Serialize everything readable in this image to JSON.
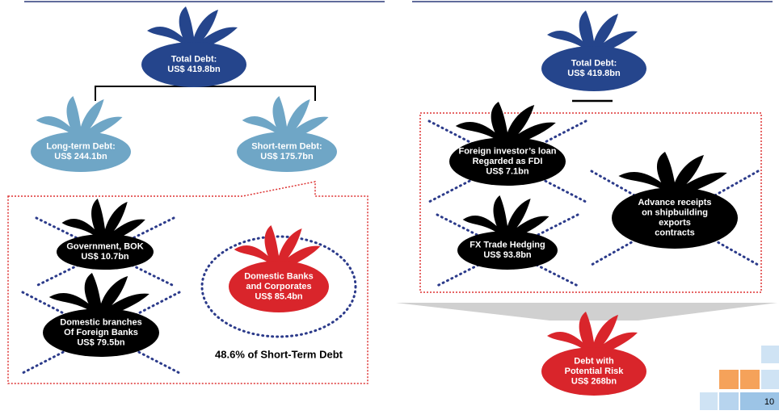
{
  "left": {
    "total": [
      "Total Debt:",
      "US$ 419.8bn"
    ],
    "long_term": [
      "Long-term Debt:",
      "US$ 244.1bn"
    ],
    "short_term": [
      "Short-term Debt:",
      "US$ 175.7bn"
    ],
    "government": [
      "Government, BOK",
      "US$ 10.7bn"
    ],
    "foreign_branches": [
      "Domestic branches",
      "Of Foreign Banks",
      "US$ 79.5bn"
    ],
    "domestic_banks": [
      "Domestic Banks",
      "and Corporates",
      "US$ 85.4bn"
    ],
    "share_note": "48.6% of Short-Term Debt"
  },
  "right": {
    "total": [
      "Total Debt:",
      "US$ 419.8bn"
    ],
    "fdi_loan": [
      "Foreign investor’s loan",
      "Regarded as FDI",
      "US$ 7.1bn"
    ],
    "fx_hedging": [
      "FX Trade Hedging",
      "US$ 93.8bn"
    ],
    "advance_receipts": [
      "Advance receipts",
      "on shipbuilding",
      "exports",
      "contracts"
    ],
    "potential_risk": [
      "Debt with",
      "Potential Risk",
      "US$ 268bn"
    ]
  },
  "page_number": "10"
}
